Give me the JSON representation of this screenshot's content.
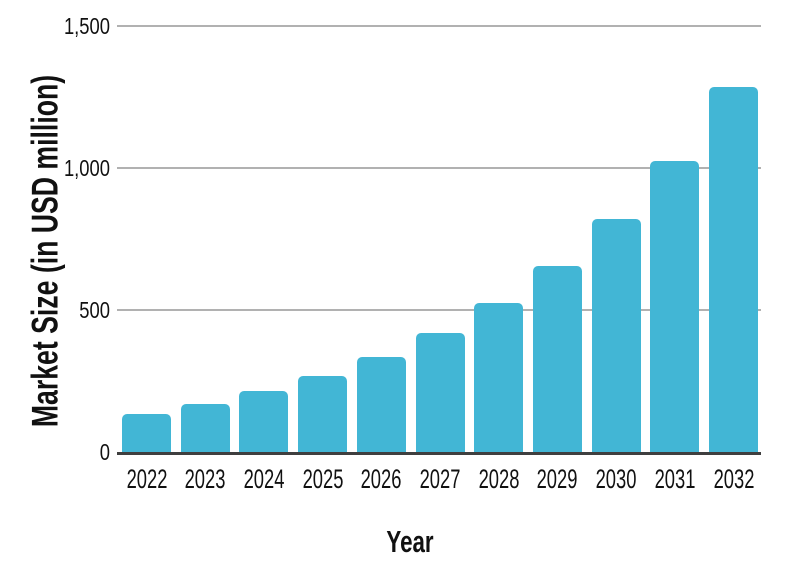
{
  "chart_data": {
    "type": "bar",
    "title": "",
    "categories": [
      "2022",
      "2023",
      "2024",
      "2025",
      "2026",
      "2027",
      "2028",
      "2029",
      "2030",
      "2031",
      "2032"
    ],
    "values": [
      135,
      170,
      214,
      268,
      335,
      419,
      524,
      655,
      819,
      1025,
      1285
    ],
    "xlabel": "Year",
    "ylabel": "Market Size (in USD million)",
    "ylim": [
      0,
      1500
    ],
    "y_ticks": [
      {
        "value": 0,
        "label": "0"
      },
      {
        "value": 500,
        "label": "500"
      },
      {
        "value": 1000,
        "label": "1,000"
      },
      {
        "value": 1500,
        "label": "1,500"
      }
    ],
    "grid": "horizontal",
    "legend": "none",
    "background_color": "#ffffff",
    "bar_color": "#42b6d5",
    "grid_color": "#b1b1b1",
    "axis_color": "#3f3f3f",
    "text_color": "#111111"
  }
}
